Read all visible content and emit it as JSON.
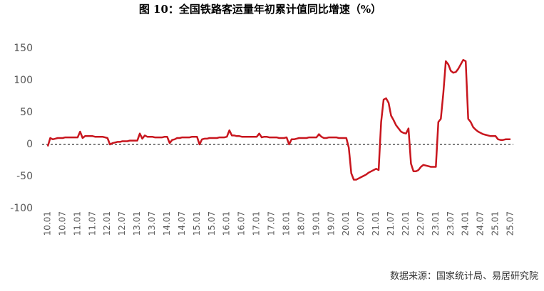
{
  "chart_data": {
    "type": "line",
    "title": "图 10：全国铁路客运量年初累计值同比增速（%）",
    "source": "数据来源：国家统计局、易居研究院",
    "categories": [
      "10.01",
      null,
      null,
      null,
      null,
      null,
      "10.07",
      null,
      null,
      null,
      null,
      null,
      "11.01",
      null,
      null,
      null,
      null,
      null,
      "11.07",
      null,
      null,
      null,
      null,
      null,
      "12.01",
      null,
      null,
      null,
      null,
      null,
      "12.07",
      null,
      null,
      null,
      null,
      null,
      "13.01",
      null,
      null,
      null,
      null,
      null,
      "13.07",
      null,
      null,
      null,
      null,
      null,
      "14.01",
      null,
      null,
      null,
      null,
      null,
      "14.07",
      null,
      null,
      null,
      null,
      null,
      "15.01",
      null,
      null,
      null,
      null,
      null,
      "15.07",
      null,
      null,
      null,
      null,
      null,
      "16.01",
      null,
      null,
      null,
      null,
      null,
      "16.07",
      null,
      null,
      null,
      null,
      null,
      "17.01",
      null,
      null,
      null,
      null,
      null,
      "17.07",
      null,
      null,
      null,
      null,
      null,
      "18.01",
      null,
      null,
      null,
      null,
      null,
      "18.07",
      null,
      null,
      null,
      null,
      null,
      "19.01",
      null,
      null,
      null,
      null,
      null,
      "19.07",
      null,
      null,
      null,
      null,
      null,
      "20.01",
      null,
      null,
      null,
      null,
      null,
      "20.07",
      null,
      null,
      null,
      null,
      null,
      "21.01",
      null,
      null,
      null,
      null,
      null,
      "21.07",
      null,
      null,
      null,
      null,
      null,
      "22.01",
      null,
      null,
      null,
      null,
      null,
      "22.07",
      null,
      null,
      null,
      null,
      null,
      "23.01",
      null,
      null,
      null,
      null,
      null,
      "23.07",
      null,
      null,
      null,
      null,
      null,
      "24.01",
      null,
      null,
      null,
      null,
      null,
      "24.07",
      null,
      null,
      null,
      null,
      null,
      "25.01",
      null,
      null,
      null,
      null,
      null,
      "25.07"
    ],
    "values": [
      -3,
      10,
      8,
      9,
      10,
      10,
      10,
      11,
      11,
      11,
      11,
      11,
      11,
      20,
      10,
      13,
      13,
      13,
      13,
      12,
      12,
      12,
      12,
      11,
      10,
      0,
      2,
      3,
      4,
      4,
      5,
      5,
      5,
      6,
      6,
      6,
      6,
      17,
      9,
      14,
      12,
      12,
      12,
      11,
      11,
      11,
      11,
      12,
      12,
      2,
      7,
      8,
      10,
      10,
      11,
      11,
      11,
      11,
      12,
      12,
      12,
      0,
      8,
      9,
      9,
      10,
      10,
      10,
      10,
      11,
      11,
      11,
      12,
      22,
      14,
      14,
      13,
      13,
      12,
      12,
      12,
      12,
      12,
      12,
      12,
      17,
      11,
      12,
      12,
      11,
      11,
      11,
      11,
      10,
      10,
      10,
      11,
      0,
      8,
      8,
      9,
      10,
      10,
      10,
      10,
      11,
      11,
      11,
      11,
      16,
      12,
      10,
      10,
      11,
      11,
      11,
      11,
      10,
      10,
      10,
      10,
      -5,
      -45,
      -55,
      -55,
      -53,
      -51,
      -49,
      -47,
      -44,
      -42,
      -40,
      -38,
      -40,
      35,
      70,
      72,
      65,
      45,
      38,
      30,
      25,
      20,
      18,
      17,
      25,
      -30,
      -42,
      -42,
      -40,
      -35,
      -32,
      -33,
      -34,
      -35,
      -35,
      -35,
      35,
      40,
      80,
      130,
      125,
      115,
      112,
      113,
      118,
      125,
      132,
      130,
      40,
      35,
      27,
      23,
      20,
      18,
      16,
      15,
      14,
      13,
      13,
      13,
      8,
      7,
      7,
      8,
      8,
      8
    ],
    "color": "#c8161e",
    "ylim": [
      -100,
      150
    ],
    "yticks": [
      -100,
      -50,
      0,
      50,
      100,
      150
    ],
    "hline": 0,
    "grid": false
  }
}
